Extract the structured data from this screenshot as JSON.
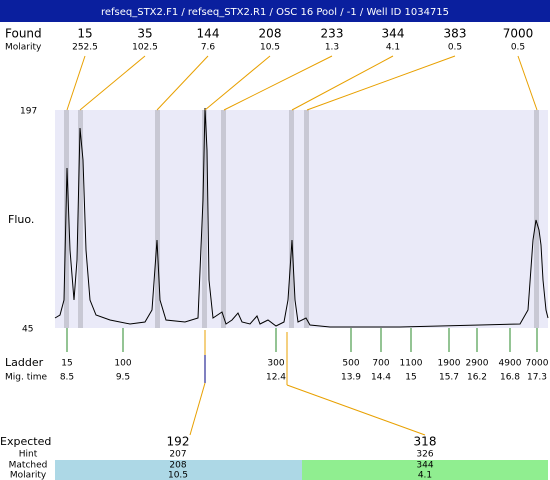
{
  "header": {
    "title": "refseq_STX2.F1 / refseq_STX2.R1  / OSC 16 Pool / -1 / Well ID 1034715"
  },
  "found": {
    "label": "Found",
    "sublabel": "Molarity",
    "peaks": [
      {
        "size": 15,
        "molarity": 252.5
      },
      {
        "size": 35,
        "molarity": 102.5
      },
      {
        "size": 144,
        "molarity": 7.6
      },
      {
        "size": 208,
        "molarity": 10.5
      },
      {
        "size": 233,
        "molarity": 1.3
      },
      {
        "size": 344,
        "molarity": 4.1
      },
      {
        "size": 383,
        "molarity": 0.5
      },
      {
        "size": 7000,
        "molarity": 0.5
      }
    ]
  },
  "plot": {
    "y_axis_label": "Fluo.",
    "y_max": 197,
    "y_min": 45
  },
  "ladder": {
    "label": "Ladder",
    "sublabel": "Mig. time",
    "items": [
      {
        "size": 15,
        "time": 8.5
      },
      {
        "size": 100,
        "time": 9.5
      },
      {
        "size": 300,
        "time": 12.4
      },
      {
        "size": 500,
        "time": 13.9
      },
      {
        "size": 700,
        "time": 14.4
      },
      {
        "size": 1100,
        "time": 15
      },
      {
        "size": 1900,
        "time": 15.7
      },
      {
        "size": 2900,
        "time": 16.2
      },
      {
        "size": 4900,
        "time": 16.8
      },
      {
        "size": 7000,
        "time": 17.3
      }
    ]
  },
  "expected": {
    "label": "Expected",
    "hint_label": "Hint",
    "matched_label": "Matched",
    "molarity_label": "Molarity",
    "items": [
      {
        "expected": 192,
        "hint": 207,
        "matched": 208,
        "molarity": 10.5
      },
      {
        "expected": 318,
        "hint": 326,
        "matched": 344,
        "molarity": 4.1
      }
    ]
  }
}
